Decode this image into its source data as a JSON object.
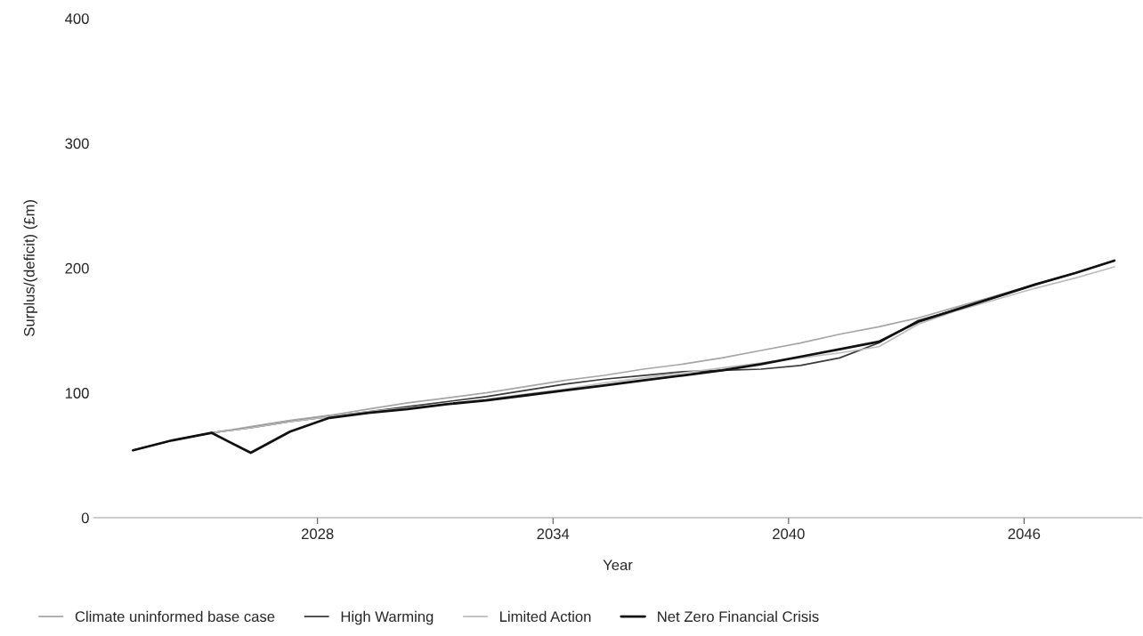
{
  "chart_data": {
    "type": "line",
    "xlabel": "Year",
    "ylabel": "Surplus/(deficit) (£m)",
    "x": [
      2023.3,
      2024.3,
      2025.3,
      2026.3,
      2027.3,
      2028.3,
      2029.3,
      2030.3,
      2031.3,
      2032.3,
      2033.3,
      2034.3,
      2035.3,
      2036.3,
      2037.3,
      2038.3,
      2039.3,
      2040.3,
      2041.3,
      2042.3,
      2043.3,
      2044.3,
      2045.3,
      2046.3,
      2047.3,
      2048.3
    ],
    "series": [
      {
        "name": "Climate uninformed base case",
        "color": "#a6a6a6",
        "values": [
          54,
          62,
          68,
          73,
          78,
          82,
          87,
          92,
          96,
          100,
          105,
          110,
          114,
          119,
          123,
          128,
          134,
          140,
          147,
          153,
          160,
          169,
          178,
          187,
          196,
          206
        ]
      },
      {
        "name": "High Warming",
        "color": "#3a3a3a",
        "values": [
          54,
          62,
          68,
          72,
          77,
          81,
          85,
          89,
          93,
          97,
          102,
          107,
          111,
          114,
          117,
          118,
          119,
          122,
          128,
          140,
          158,
          167,
          177,
          187,
          196,
          206
        ]
      },
      {
        "name": "Limited Action",
        "color": "#bdbdbd",
        "values": [
          54,
          62,
          68,
          72,
          77,
          81,
          85,
          88,
          91,
          95,
          99,
          103,
          108,
          112,
          116,
          120,
          124,
          128,
          132,
          137,
          155,
          166,
          175,
          184,
          192,
          201
        ]
      },
      {
        "name": "Net Zero Financial Crisis",
        "color": "#111111",
        "values": [
          54,
          62,
          68,
          52,
          69,
          80,
          84,
          87,
          91,
          94,
          98,
          102,
          106,
          110,
          114,
          118,
          123,
          129,
          135,
          141,
          157,
          167,
          177,
          187,
          196,
          206
        ]
      }
    ],
    "xlim": [
      2022.3,
      2049.0
    ],
    "xticks": [
      2028,
      2034,
      2040,
      2046
    ],
    "ylim": [
      0,
      400
    ],
    "yticks": [
      0,
      100,
      200,
      300,
      400
    ],
    "grid": false,
    "legend": "bottom",
    "marker": "none",
    "line_style": "solid"
  }
}
